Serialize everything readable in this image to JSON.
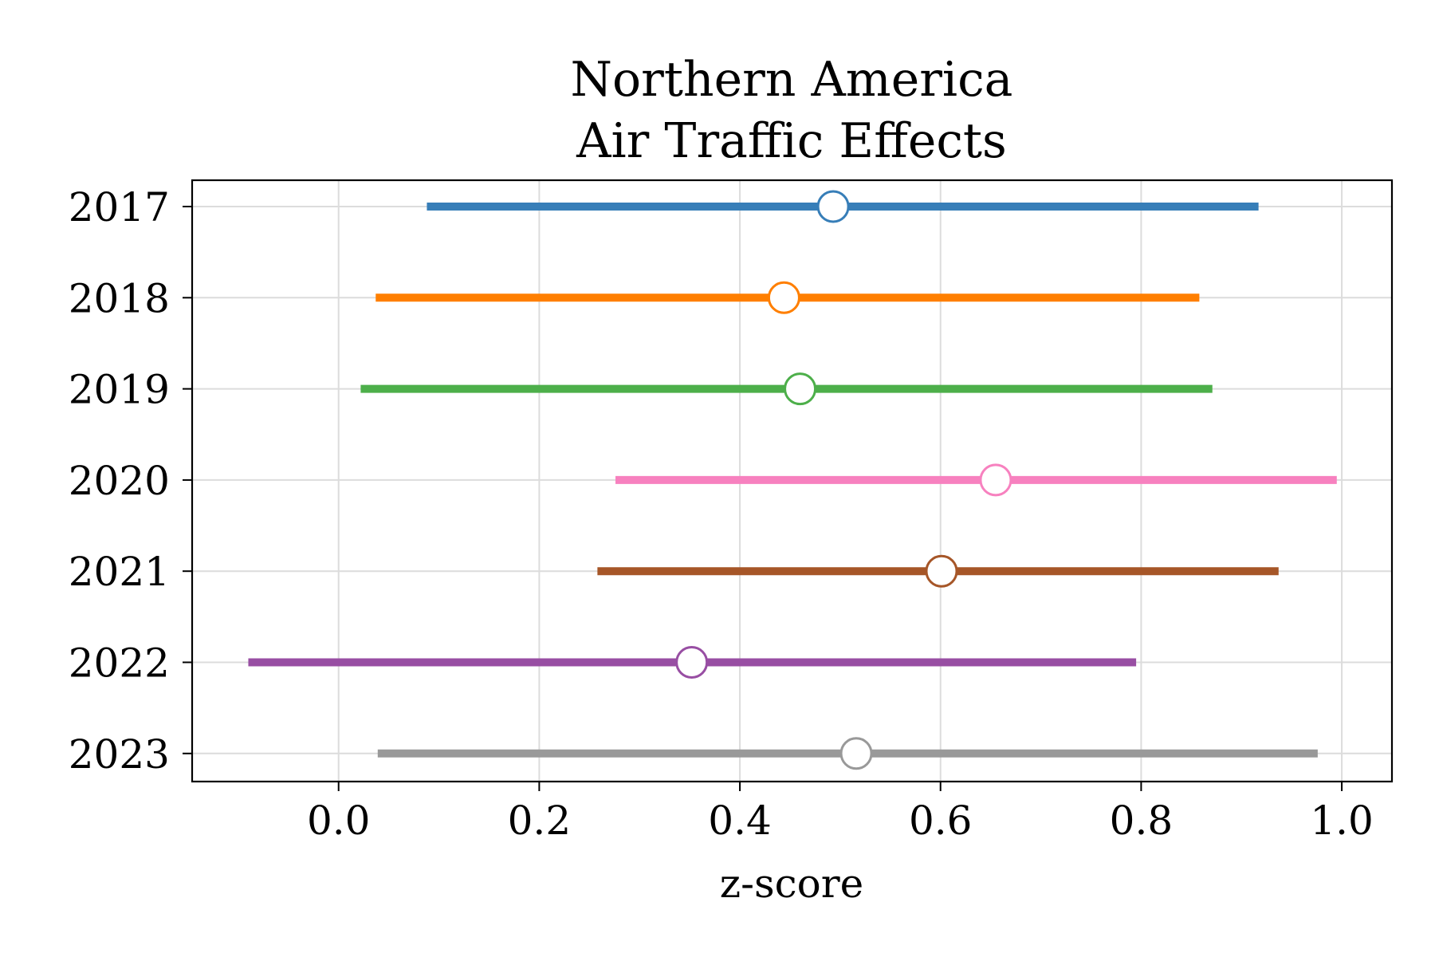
{
  "chart_data": {
    "type": "errorbar",
    "title": [
      "Northern America",
      "Air Traffic Effects"
    ],
    "xlabel": "z-score",
    "ylabel": "",
    "xlim": [
      -0.146,
      1.05
    ],
    "x_ticks": [
      "0.0",
      "0.2",
      "0.4",
      "0.6",
      "0.8",
      "1.0"
    ],
    "x_tick_values": [
      0.0,
      0.2,
      0.4,
      0.6,
      0.8,
      1.0
    ],
    "grid": true,
    "legend": "none",
    "categories": [
      "2017",
      "2018",
      "2019",
      "2020",
      "2021",
      "2022",
      "2023"
    ],
    "points": [
      {
        "category": "2017",
        "estimate": 0.493,
        "low": 0.088,
        "high": 0.917,
        "color": "#377eb8"
      },
      {
        "category": "2018",
        "estimate": 0.444,
        "low": 0.037,
        "high": 0.858,
        "color": "#ff7f00"
      },
      {
        "category": "2019",
        "estimate": 0.46,
        "low": 0.022,
        "high": 0.871,
        "color": "#4daf4a"
      },
      {
        "category": "2020",
        "estimate": 0.655,
        "low": 0.276,
        "high": 0.995,
        "color": "#f781bf"
      },
      {
        "category": "2021",
        "estimate": 0.601,
        "low": 0.258,
        "high": 0.937,
        "color": "#a65628"
      },
      {
        "category": "2022",
        "estimate": 0.352,
        "low": -0.09,
        "high": 0.795,
        "color": "#984ea3"
      },
      {
        "category": "2023",
        "estimate": 0.516,
        "low": 0.039,
        "high": 0.976,
        "color": "#999999"
      }
    ]
  }
}
